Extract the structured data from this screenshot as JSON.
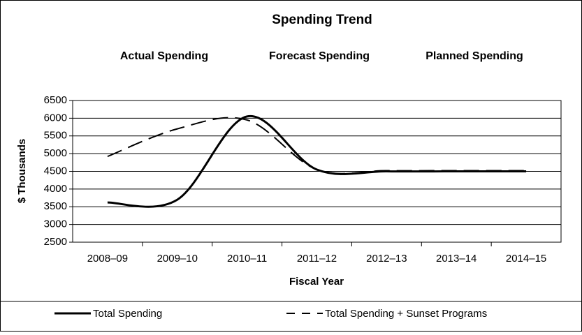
{
  "chart_data": {
    "type": "line",
    "title": "Spending Trend",
    "annotations": [
      "Actual Spending",
      "Forecast Spending",
      "Planned Spending"
    ],
    "x_label": "Fiscal Year",
    "y_label": "$ Thousands",
    "categories": [
      "2008–09",
      "2009–10",
      "2010–11",
      "2011–12",
      "2012–13",
      "2013–14",
      "2014–15"
    ],
    "series": [
      {
        "name": "Total Spending",
        "color": "#000000",
        "dash": false,
        "values": [
          3620,
          3700,
          6050,
          4550,
          4500,
          4500,
          4500
        ]
      },
      {
        "name": "Total Spending + Sunset Programs",
        "color": "#000000",
        "dash": true,
        "values": [
          4920,
          5700,
          5950,
          4550,
          4520,
          4520,
          4520
        ]
      }
    ],
    "ylim": [
      2500,
      6500
    ],
    "yticks": [
      2500,
      3000,
      3500,
      4000,
      4500,
      5000,
      5500,
      6000,
      6500
    ],
    "grid": true
  }
}
